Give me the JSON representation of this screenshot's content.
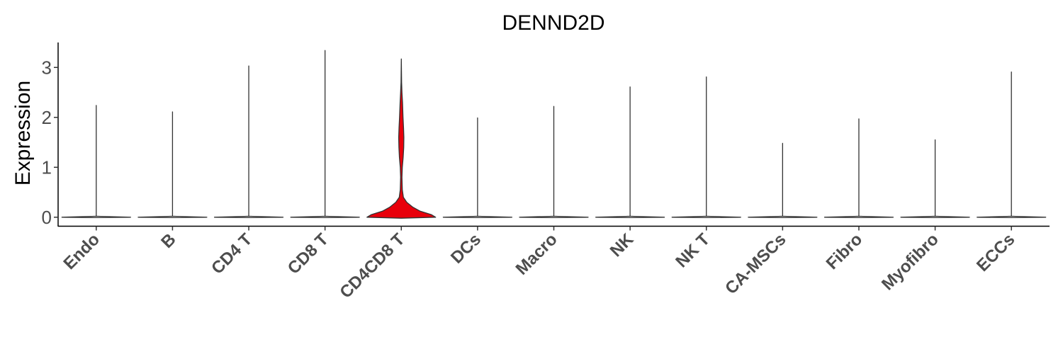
{
  "chart_data": {
    "type": "violin",
    "title": "DENND2D",
    "xlabel": "",
    "ylabel": "Expression",
    "ylim": [
      -0.18,
      3.5
    ],
    "yticks": [
      0,
      1,
      2,
      3
    ],
    "grid": false,
    "legend": "none",
    "categories": [
      "Endo",
      "B",
      "CD4 T",
      "CD8 T",
      "CD4CD8 T",
      "DCs",
      "Macro",
      "NK",
      "NK T",
      "CA-MSCs",
      "Fibro",
      "Myofibro",
      "ECCs"
    ],
    "max_values": [
      2.24,
      2.11,
      3.03,
      3.34,
      3.17,
      1.99,
      2.22,
      2.61,
      2.81,
      1.48,
      1.97,
      1.55,
      2.91
    ],
    "series": [
      {
        "values": [
          0,
          0,
          0,
          0,
          0.4,
          0,
          0,
          0,
          0,
          0,
          0,
          0,
          0
        ]
      }
    ],
    "highlight": {
      "category": "CD4CD8 T",
      "color": "#e8000b"
    }
  }
}
